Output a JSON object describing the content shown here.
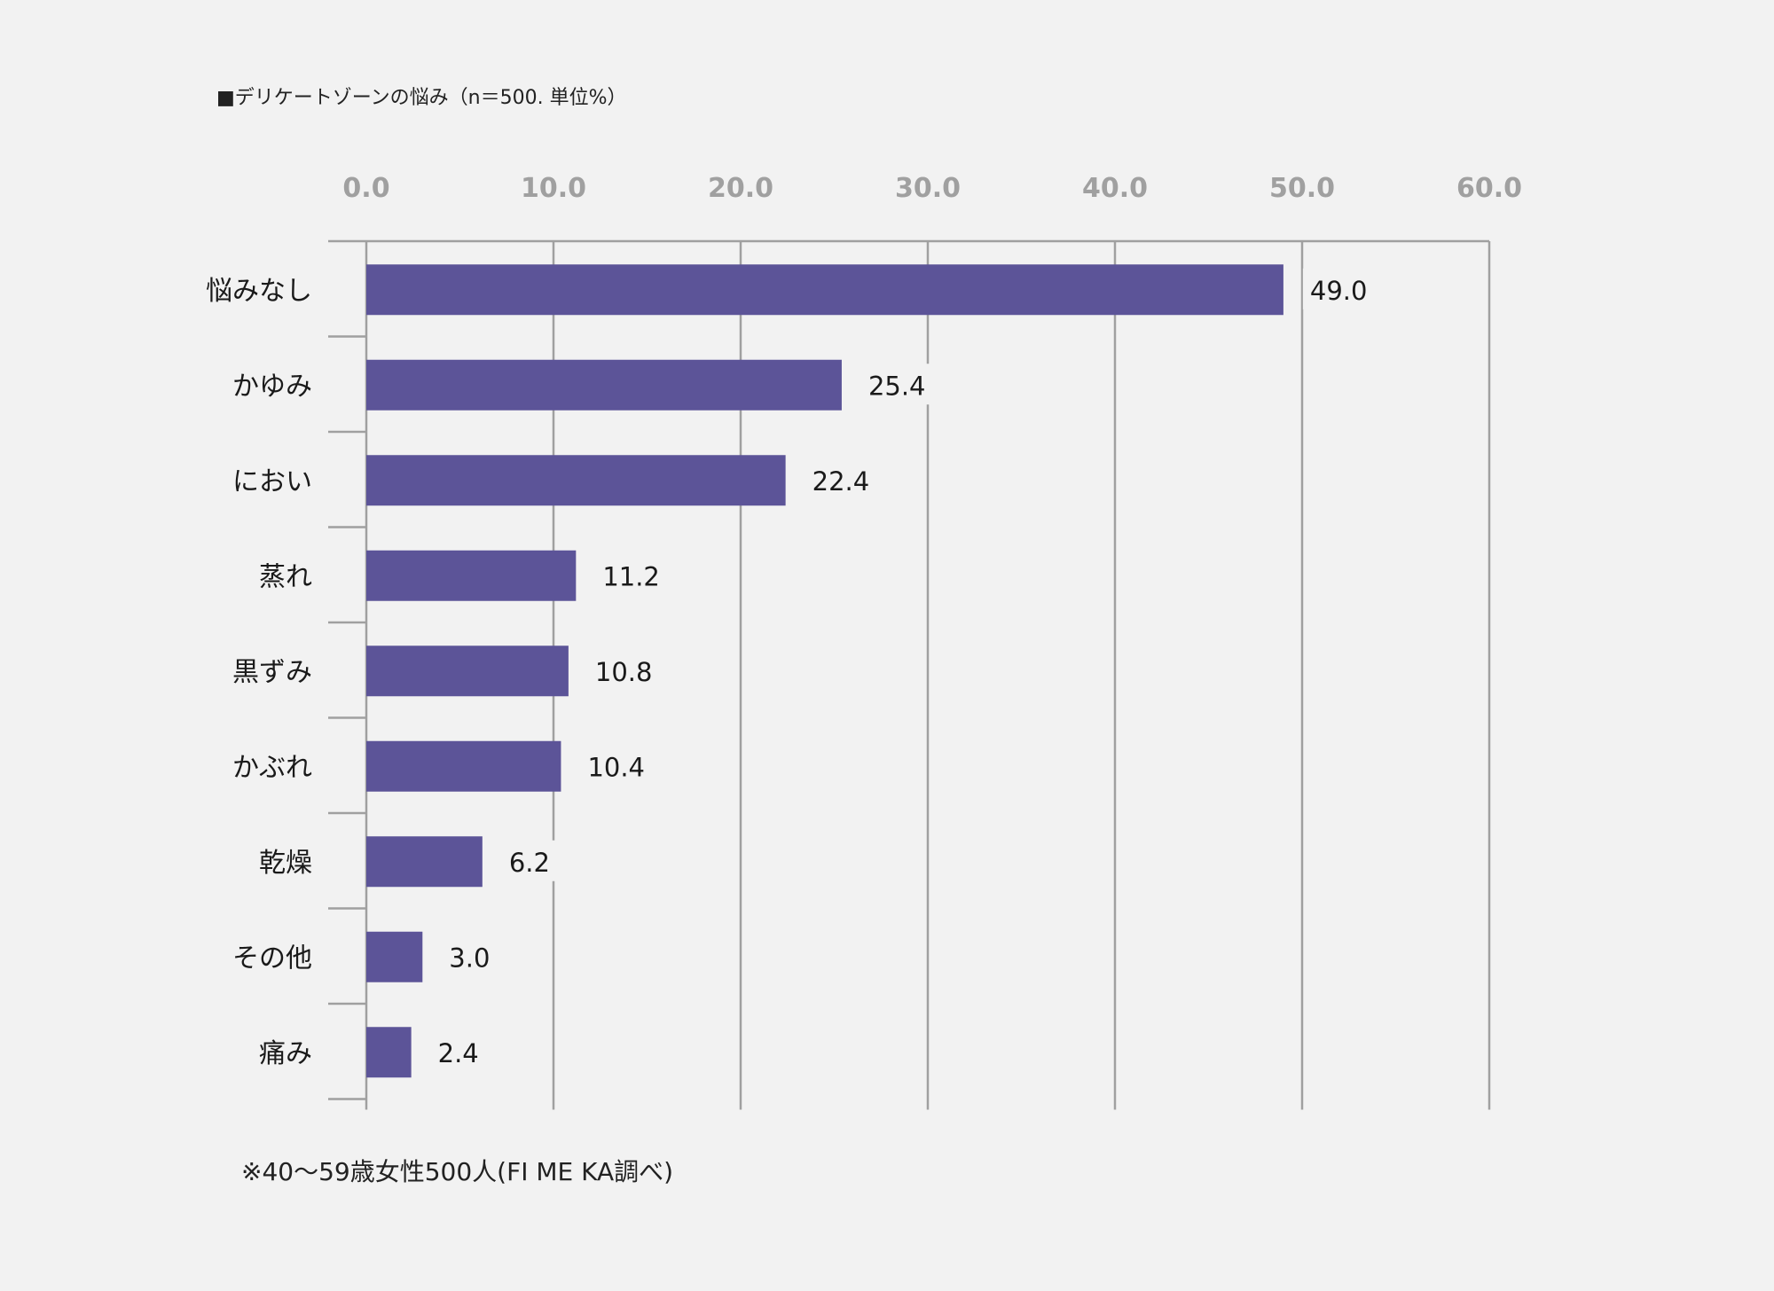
{
  "title": "■デリケートゾーンの悩み（n＝500. 単位%）",
  "footnote": "※40〜59歳女性500人(FI ME KA調べ)",
  "colors": {
    "bar": "#5c5498",
    "grid": "#a0a0a0",
    "tick_label": "#a0a0a0",
    "text": "#1a1a1a",
    "background": "#f2f2f2"
  },
  "chart_data": {
    "type": "bar",
    "orientation": "horizontal",
    "title": "■デリケートゾーンの悩み（n＝500. 単位%）",
    "xlabel": "",
    "ylabel": "",
    "xlim": [
      0,
      60
    ],
    "x_ticks": [
      0,
      10,
      20,
      30,
      40,
      50,
      60
    ],
    "x_tick_labels": [
      "0.0",
      "10.0",
      "20.0",
      "30.0",
      "40.0",
      "50.0",
      "60.0"
    ],
    "axis_position": "top",
    "grid": true,
    "categories": [
      "悩みなし",
      "かゆみ",
      "におい",
      "蒸れ",
      "黒ずみ",
      "かぶれ",
      "乾燥",
      "その他",
      "痛み"
    ],
    "values": [
      49.0,
      25.4,
      22.4,
      11.2,
      10.8,
      10.4,
      6.2,
      3.0,
      2.4
    ],
    "value_labels": [
      "49.0",
      "25.4",
      "22.4",
      "11.2",
      "10.8",
      "10.4",
      "6.2",
      "3.0",
      "2.4"
    ]
  }
}
